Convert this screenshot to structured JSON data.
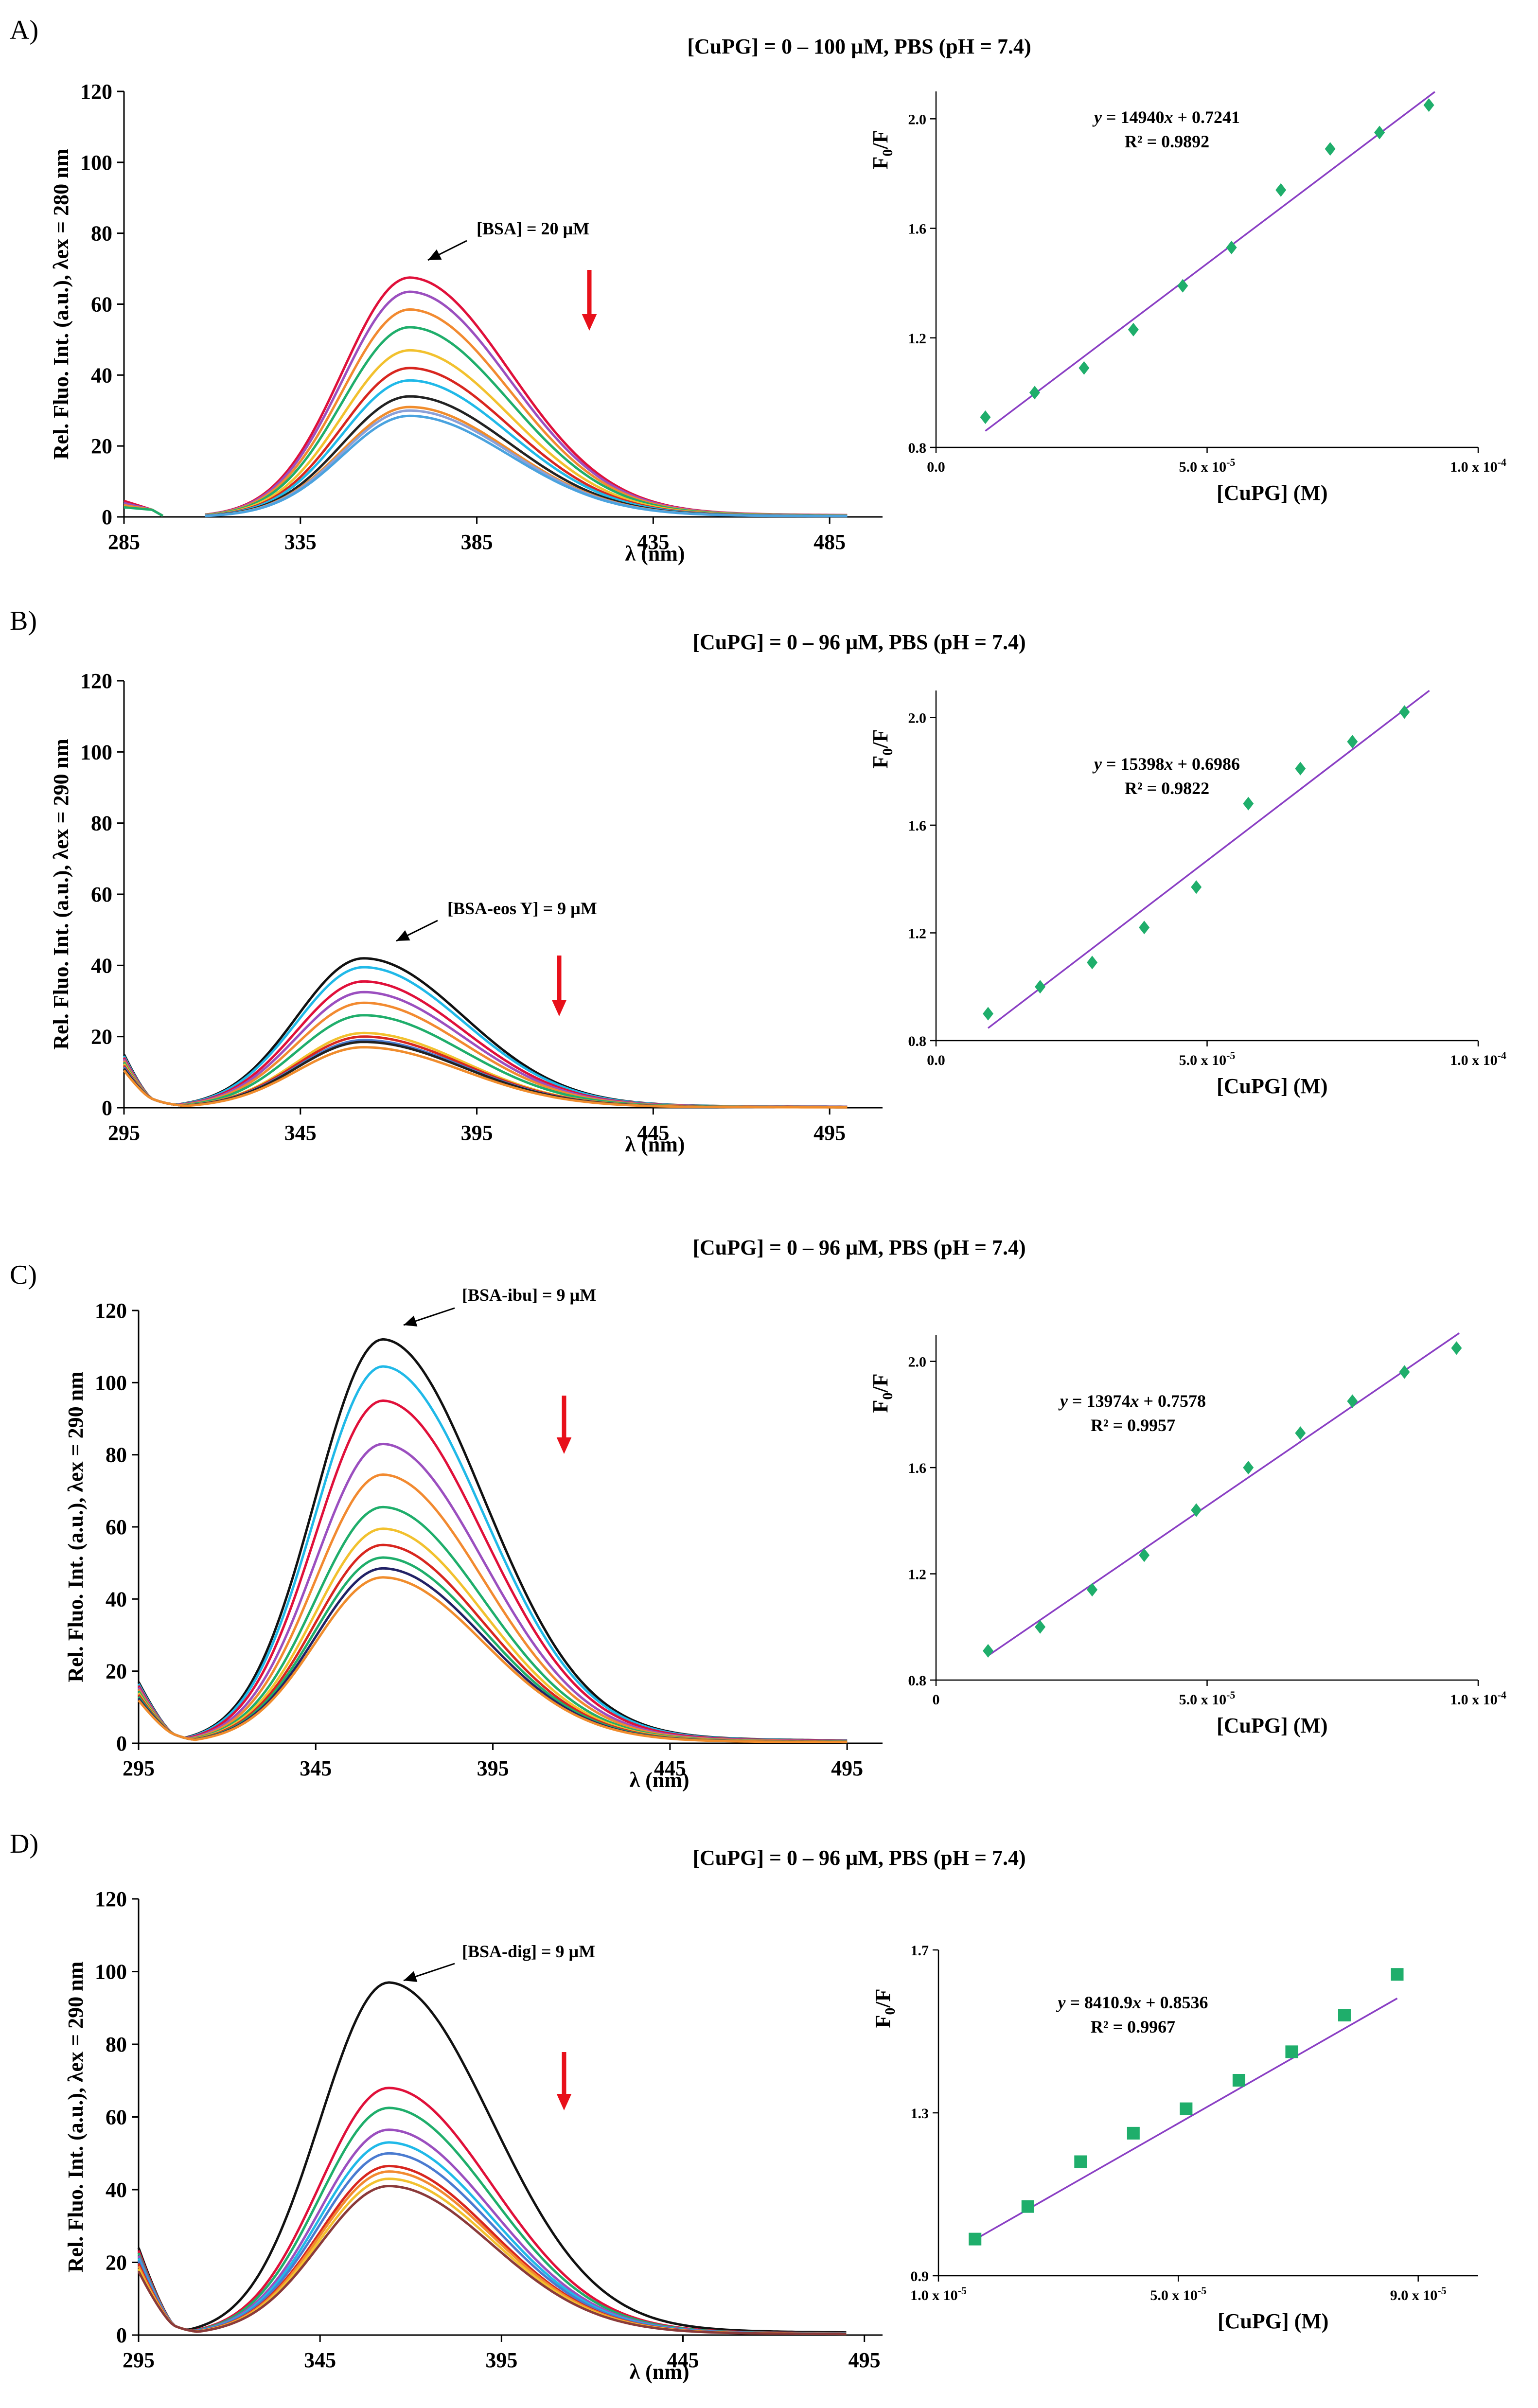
{
  "chart_data": [
    {
      "panel_label": "A)",
      "title": "[CuPG] = 0 – 100 µM, PBS (pH = 7.4)",
      "spectrum": {
        "type": "line",
        "ylabel": "Rel. Fluo. Int. (a.u.), λex = 280 nm",
        "xlabel": "λ (nm)",
        "xlim": [
          285,
          500
        ],
        "ylim": [
          0,
          120
        ],
        "xticks": [
          "285",
          "335",
          "385",
          "435",
          "485"
        ],
        "xtick_values": [
          285,
          335,
          385,
          435,
          485
        ],
        "yticks": [
          "0",
          "20",
          "40",
          "60",
          "80",
          "100",
          "120"
        ],
        "peak_nm": 366,
        "start_nm": 308,
        "gap_nm": 296,
        "left_edge": 4.5,
        "annotation": "[BSA] = 20 µM",
        "series_colors": [
          "#e0103a",
          "#9b4fbf",
          "#f28a30",
          "#1fae6b",
          "#f2c12e",
          "#d8261f",
          "#20b9e8",
          "#222222",
          "#f08c2c",
          "#8aa0d8",
          "#4aa3df"
        ],
        "peak_values": [
          67.5,
          63.5,
          58.5,
          53.5,
          47,
          42,
          38.5,
          34,
          31,
          30,
          28.5
        ]
      },
      "stern_volmer": {
        "type": "scatter",
        "ylabel": "F0/F",
        "xlabel": "[CuPG] (M)",
        "xlim": [
          0,
          0.0001
        ],
        "ylim": [
          0.8,
          2.1
        ],
        "xtick_labels": [
          {
            "value": 0,
            "label": "0.0"
          },
          {
            "value": 5e-05,
            "label": "5.0 x 10-5"
          },
          {
            "value": 0.0001,
            "label": "1.0 x 10-4"
          }
        ],
        "yticks": [
          "0.8",
          "1.2",
          "1.6",
          "2.0"
        ],
        "ytick_values": [
          0.8,
          1.2,
          1.6,
          2.0
        ],
        "marker": "diamond",
        "x": [
          9.1e-06,
          1.82e-05,
          2.73e-05,
          3.64e-05,
          4.55e-05,
          5.45e-05,
          6.36e-05,
          7.27e-05,
          8.18e-05,
          9.09e-05
        ],
        "y": [
          0.91,
          1.0,
          1.09,
          1.23,
          1.39,
          1.53,
          1.74,
          1.89,
          1.95,
          2.05
        ],
        "slope": 14940,
        "intercept": 0.7241,
        "fit_x": [
          9.1e-06,
          9.2e-05
        ],
        "equation": "y = 14940x + 0.7241",
        "r2": "R² = 0.9892"
      }
    },
    {
      "panel_label": "B)",
      "title": "[CuPG] = 0 – 96 µM, PBS (pH = 7.4)",
      "spectrum": {
        "type": "line",
        "ylabel": "Rel. Fluo. Int. (a.u.), λex = 290 nm",
        "xlabel": "λ (nm)",
        "xlim": [
          295,
          510
        ],
        "ylim": [
          0,
          120
        ],
        "xticks": [
          "295",
          "345",
          "395",
          "445",
          "495"
        ],
        "xtick_values": [
          295,
          345,
          395,
          445,
          495
        ],
        "yticks": [
          "0",
          "20",
          "40",
          "60",
          "80",
          "100",
          "120"
        ],
        "peak_nm": 363,
        "min_nm": 303,
        "left_edge": 15,
        "annotation": "[BSA-eos Y] = 9 µM",
        "series_colors": [
          "#111111",
          "#20b9e8",
          "#e0103a",
          "#9b4fbf",
          "#f28a30",
          "#1fae6b",
          "#f2c12e",
          "#d8261f",
          "#4a7bd0",
          "#222222",
          "#f08c2c"
        ],
        "peak_values": [
          42,
          39.5,
          35.5,
          32.5,
          29.5,
          26,
          21,
          20,
          19,
          18.5,
          17
        ]
      },
      "stern_volmer": {
        "type": "scatter",
        "ylabel": "F0/F",
        "xlabel": "[CuPG] (M)",
        "xlim": [
          0,
          0.0001
        ],
        "ylim": [
          0.8,
          2.1
        ],
        "xtick_labels": [
          {
            "value": 0,
            "label": "0.0"
          },
          {
            "value": 5e-05,
            "label": "5.0 x 10-5"
          },
          {
            "value": 0.0001,
            "label": "1.0 x 10-4"
          }
        ],
        "yticks": [
          "0.8",
          "1.2",
          "1.6",
          "2.0"
        ],
        "ytick_values": [
          0.8,
          1.2,
          1.6,
          2.0
        ],
        "marker": "diamond",
        "x": [
          9.6e-06,
          1.92e-05,
          2.88e-05,
          3.84e-05,
          4.8e-05,
          5.76e-05,
          6.72e-05,
          7.68e-05,
          8.64e-05
        ],
        "y": [
          0.9,
          1.0,
          1.09,
          1.22,
          1.37,
          1.68,
          1.81,
          1.91,
          2.02
        ],
        "slope": 15398,
        "intercept": 0.6986,
        "fit_x": [
          9.6e-06,
          9.1e-05
        ],
        "equation": "y = 15398x + 0.6986",
        "r2": "R² = 0.9822"
      }
    },
    {
      "panel_label": "C)",
      "title": "[CuPG] = 0 – 96 µM, PBS (pH = 7.4)",
      "spectrum": {
        "type": "line",
        "ylabel": "Rel. Fluo. Int. (a.u.), λex = 290 nm",
        "xlabel": "λ (nm)",
        "xlim": [
          295,
          505
        ],
        "ylim": [
          0,
          120
        ],
        "xticks": [
          "295",
          "345",
          "395",
          "445",
          "495"
        ],
        "xtick_values": [
          295,
          345,
          395,
          445,
          495
        ],
        "yticks": [
          "0",
          "20",
          "40",
          "60",
          "80",
          "100",
          "120"
        ],
        "peak_nm": 364,
        "min_nm": 305,
        "left_edge": 17,
        "annotation": "[BSA-ibu] = 9 µM",
        "series_colors": [
          "#111111",
          "#20b9e8",
          "#e0103a",
          "#9b4fbf",
          "#f28a30",
          "#1fae6b",
          "#f2c12e",
          "#d8261f",
          "#1fae6b",
          "#222266",
          "#f08c2c"
        ],
        "peak_values": [
          112,
          104.5,
          95,
          83,
          74.5,
          65.5,
          59.5,
          55,
          51.5,
          48.5,
          46
        ]
      },
      "stern_volmer": {
        "type": "scatter",
        "ylabel": "F0/F",
        "xlabel": "[CuPG] (M)",
        "xlim": [
          0,
          0.0001
        ],
        "ylim": [
          0.8,
          2.1
        ],
        "xtick_labels": [
          {
            "value": 0,
            "label": "0"
          },
          {
            "value": 5e-05,
            "label": "5.0 x 10-5"
          },
          {
            "value": 0.0001,
            "label": "1.0 x 10-4"
          }
        ],
        "yticks": [
          "0.8",
          "1.2",
          "1.6",
          "2.0"
        ],
        "ytick_values": [
          0.8,
          1.2,
          1.6,
          2.0
        ],
        "marker": "diamond",
        "x": [
          9.6e-06,
          1.92e-05,
          2.88e-05,
          3.84e-05,
          4.8e-05,
          5.76e-05,
          6.72e-05,
          7.68e-05,
          8.64e-05,
          9.6e-05
        ],
        "y": [
          0.91,
          1.0,
          1.14,
          1.27,
          1.44,
          1.6,
          1.73,
          1.85,
          1.96,
          2.05
        ],
        "slope": 13974,
        "intercept": 0.7578,
        "fit_x": [
          9.6e-06,
          9.65e-05
        ],
        "equation": "y = 13974x + 0.7578",
        "r2": "R² = 0.9957"
      }
    },
    {
      "panel_label": "D)",
      "title": "[CuPG] = 0 – 96 µM, PBS (pH = 7.4)",
      "spectrum": {
        "type": "line",
        "ylabel": "Rel. Fluo. Int. (a.u.), λex = 290 nm",
        "xlabel": "λ (nm)",
        "xlim": [
          295,
          500
        ],
        "ylim": [
          0,
          120
        ],
        "xticks": [
          "295",
          "345",
          "395",
          "445",
          "495"
        ],
        "xtick_values": [
          295,
          345,
          395,
          445,
          495
        ],
        "yticks": [
          "0",
          "20",
          "40",
          "60",
          "80",
          "100",
          "120"
        ],
        "peak_nm": 364,
        "min_nm": 305,
        "left_edge": 24,
        "annotation": "[BSA-dig] = 9 µM",
        "series_colors": [
          "#111111",
          "#e0103a",
          "#1fae6b",
          "#9b4fbf",
          "#20b9e8",
          "#4a7bd0",
          "#d8261f",
          "#f28a30",
          "#f2c12e",
          "#8b3a3a"
        ],
        "peak_values": [
          97,
          68,
          62.5,
          56.5,
          53,
          50,
          46.5,
          45,
          43,
          41
        ]
      },
      "stern_volmer": {
        "type": "scatter",
        "ylabel": "F0/F",
        "xlabel": "[CuPG] (M)",
        "xlim": [
          1e-05,
          0.0001
        ],
        "ylim": [
          0.9,
          1.7
        ],
        "xtick_labels": [
          {
            "value": 1e-05,
            "label": "1.0 x 10-5"
          },
          {
            "value": 5e-05,
            "label": "5.0 x 10-5"
          },
          {
            "value": 9e-05,
            "label": "9.0 x 10-5"
          }
        ],
        "yticks": [
          "0.9",
          "1.3",
          "1.7"
        ],
        "ytick_values": [
          0.9,
          1.3,
          1.7
        ],
        "marker": "square",
        "x": [
          1.61e-05,
          2.49e-05,
          3.37e-05,
          4.25e-05,
          5.13e-05,
          6.01e-05,
          6.89e-05,
          7.77e-05,
          8.65e-05
        ],
        "y": [
          0.99,
          1.07,
          1.18,
          1.25,
          1.31,
          1.38,
          1.45,
          1.54,
          1.64
        ],
        "slope": 8410.9,
        "intercept": 0.8536,
        "fit_x": [
          1.61e-05,
          8.65e-05
        ],
        "equation": "y = 8410.9x + 0.8536",
        "r2": "R² = 0.9967"
      }
    }
  ]
}
